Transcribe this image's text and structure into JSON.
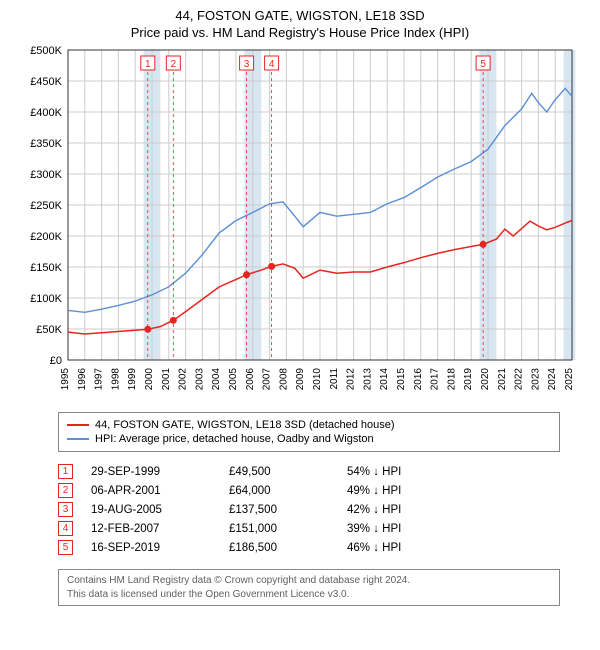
{
  "title1": "44, FOSTON GATE, WIGSTON, LE18 3SD",
  "title2": "Price paid vs. HM Land Registry's House Price Index (HPI)",
  "chart": {
    "type": "line",
    "x_start_year": 1995,
    "x_end_year": 2025,
    "ylim": [
      0,
      500000
    ],
    "ytick_step": 50000,
    "ytick_labels": [
      "£0",
      "£50K",
      "£100K",
      "£150K",
      "£200K",
      "£250K",
      "£300K",
      "£350K",
      "£400K",
      "£450K",
      "£500K"
    ],
    "xtick_years": [
      1995,
      1996,
      1997,
      1998,
      1999,
      2000,
      2001,
      2002,
      2003,
      2004,
      2005,
      2006,
      2007,
      2008,
      2009,
      2010,
      2011,
      2012,
      2013,
      2014,
      2015,
      2016,
      2017,
      2018,
      2019,
      2020,
      2021,
      2022,
      2023,
      2024,
      2025
    ],
    "background_color": "#ffffff",
    "grid_color": "#cccccc",
    "hband_color": "#d8e6f2",
    "hband_years": [
      [
        1999.5,
        2000.5
      ],
      [
        2005.5,
        2006.5
      ],
      [
        2019.5,
        2020.5
      ],
      [
        2024.5,
        2025.2
      ]
    ],
    "series": {
      "property": {
        "color": "#e52620",
        "width": 1.5,
        "points": [
          [
            1995.0,
            45000
          ],
          [
            1996.0,
            42000
          ],
          [
            1997.0,
            44000
          ],
          [
            1998.0,
            46000
          ],
          [
            1999.0,
            48000
          ],
          [
            1999.75,
            49500
          ],
          [
            2000.5,
            54000
          ],
          [
            2001.27,
            64000
          ],
          [
            2002.0,
            78000
          ],
          [
            2003.0,
            98000
          ],
          [
            2004.0,
            118000
          ],
          [
            2005.0,
            130000
          ],
          [
            2005.63,
            137500
          ],
          [
            2006.5,
            145000
          ],
          [
            2007.12,
            151000
          ],
          [
            2007.8,
            155000
          ],
          [
            2008.5,
            148000
          ],
          [
            2009.0,
            132000
          ],
          [
            2010.0,
            145000
          ],
          [
            2011.0,
            140000
          ],
          [
            2012.0,
            142000
          ],
          [
            2013.0,
            142000
          ],
          [
            2014.0,
            150000
          ],
          [
            2015.0,
            157000
          ],
          [
            2016.0,
            165000
          ],
          [
            2017.0,
            172000
          ],
          [
            2018.0,
            178000
          ],
          [
            2019.0,
            183000
          ],
          [
            2019.71,
            186500
          ],
          [
            2020.5,
            195000
          ],
          [
            2021.0,
            211000
          ],
          [
            2021.5,
            200000
          ],
          [
            2022.0,
            212000
          ],
          [
            2022.5,
            224000
          ],
          [
            2023.0,
            216000
          ],
          [
            2023.5,
            210000
          ],
          [
            2024.0,
            214000
          ],
          [
            2024.7,
            222000
          ],
          [
            2025.0,
            225000
          ]
        ]
      },
      "hpi": {
        "color": "#5b8fd6",
        "width": 1.4,
        "points": [
          [
            1995.0,
            80000
          ],
          [
            1996.0,
            77000
          ],
          [
            1997.0,
            82000
          ],
          [
            1998.0,
            88000
          ],
          [
            1999.0,
            95000
          ],
          [
            2000.0,
            105000
          ],
          [
            2001.0,
            118000
          ],
          [
            2002.0,
            140000
          ],
          [
            2003.0,
            170000
          ],
          [
            2004.0,
            205000
          ],
          [
            2005.0,
            225000
          ],
          [
            2006.0,
            238000
          ],
          [
            2007.0,
            252000
          ],
          [
            2007.8,
            255000
          ],
          [
            2008.5,
            232000
          ],
          [
            2009.0,
            215000
          ],
          [
            2010.0,
            238000
          ],
          [
            2011.0,
            232000
          ],
          [
            2012.0,
            235000
          ],
          [
            2013.0,
            238000
          ],
          [
            2014.0,
            252000
          ],
          [
            2015.0,
            262000
          ],
          [
            2016.0,
            278000
          ],
          [
            2017.0,
            295000
          ],
          [
            2018.0,
            308000
          ],
          [
            2019.0,
            320000
          ],
          [
            2020.0,
            340000
          ],
          [
            2021.0,
            378000
          ],
          [
            2022.0,
            405000
          ],
          [
            2022.6,
            430000
          ],
          [
            2023.0,
            415000
          ],
          [
            2023.5,
            400000
          ],
          [
            2024.0,
            420000
          ],
          [
            2024.6,
            438000
          ],
          [
            2025.0,
            425000
          ]
        ]
      }
    },
    "sale_markers": [
      {
        "n": "1",
        "year": 1999.75,
        "price": 49500
      },
      {
        "n": "2",
        "year": 2001.27,
        "price": 64000
      },
      {
        "n": "3",
        "year": 2005.63,
        "price": 137500
      },
      {
        "n": "4",
        "year": 2007.12,
        "price": 151000
      },
      {
        "n": "5",
        "year": 2019.71,
        "price": 186500
      }
    ]
  },
  "legend": {
    "s1_color": "#e52620",
    "s1_label": "44, FOSTON GATE, WIGSTON, LE18 3SD (detached house)",
    "s2_color": "#5b8fd6",
    "s2_label": "HPI: Average price, detached house, Oadby and Wigston"
  },
  "sales": [
    {
      "n": "1",
      "date": "29-SEP-1999",
      "price": "£49,500",
      "delta": "54% ↓ HPI"
    },
    {
      "n": "2",
      "date": "06-APR-2001",
      "price": "£64,000",
      "delta": "49% ↓ HPI"
    },
    {
      "n": "3",
      "date": "19-AUG-2005",
      "price": "£137,500",
      "delta": "42% ↓ HPI"
    },
    {
      "n": "4",
      "date": "12-FEB-2007",
      "price": "£151,000",
      "delta": "39% ↓ HPI"
    },
    {
      "n": "5",
      "date": "16-SEP-2019",
      "price": "£186,500",
      "delta": "46% ↓ HPI"
    }
  ],
  "footer1": "Contains HM Land Registry data © Crown copyright and database right 2024.",
  "footer2": "This data is licensed under the Open Government Licence v3.0."
}
